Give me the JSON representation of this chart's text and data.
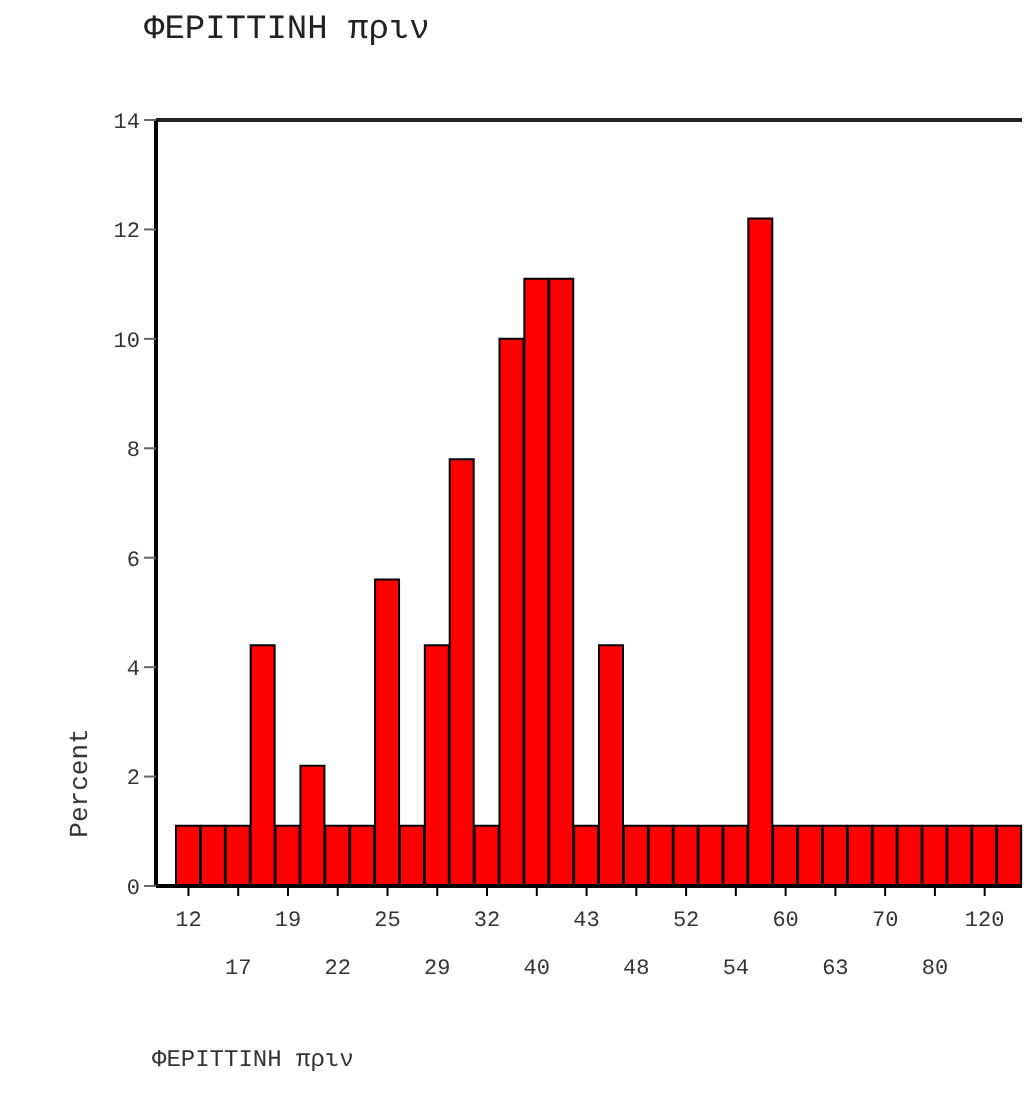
{
  "chart_data": {
    "type": "bar",
    "title": "ΦΕΡΙΤΤΙΝΗ πριν",
    "xlabel": "ΦΕΡΙΤΤΙΝΗ πριν",
    "ylabel": "Percent",
    "categories": [
      "12",
      null,
      "17",
      null,
      "19",
      null,
      "22",
      null,
      "25",
      null,
      "29",
      null,
      "32",
      null,
      "40",
      null,
      "43",
      null,
      "48",
      null,
      "52",
      null,
      "54",
      null,
      "60",
      null,
      "63",
      null,
      "70",
      null,
      "80",
      null,
      "120",
      null
    ],
    "values": [
      1.1,
      1.1,
      1.1,
      4.4,
      1.1,
      2.2,
      1.1,
      1.1,
      5.6,
      1.1,
      4.4,
      7.8,
      1.1,
      10.0,
      11.1,
      11.1,
      1.1,
      4.4,
      1.1,
      1.1,
      1.1,
      1.1,
      1.1,
      12.2,
      1.1,
      1.1,
      1.1,
      1.1,
      1.1,
      1.1,
      1.1,
      1.1,
      1.1,
      1.1
    ],
    "color": "#ff0000",
    "ylim": [
      0,
      14
    ],
    "yticks": [
      0,
      2,
      4,
      6,
      8,
      10,
      12,
      14
    ],
    "grid": false,
    "legend": false
  }
}
